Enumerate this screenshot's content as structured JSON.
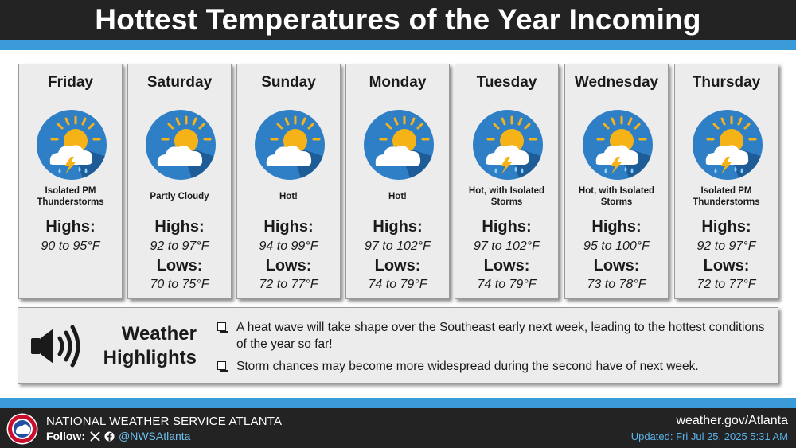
{
  "title": "Hottest Temperatures of the Year Incoming",
  "colors": {
    "title_bar": "#232323",
    "accent_stripe": "#3b9bd9",
    "card_bg": "#ececec",
    "icon_circle": "#2f7fc6",
    "sun": "#f5b318",
    "cloud": "#ffffff"
  },
  "days": [
    {
      "name": "Friday",
      "icon": "sun-cloud-thunderstorm-icon",
      "condition": "Isolated PM Thunderstorms",
      "highs_label": "Highs:",
      "highs": "90 to 95°F",
      "lows_label": "",
      "lows": ""
    },
    {
      "name": "Saturday",
      "icon": "partly-cloudy-icon",
      "condition": "Partly Cloudy",
      "highs_label": "Highs:",
      "highs": "92 to 97°F",
      "lows_label": "Lows:",
      "lows": "70 to 75°F"
    },
    {
      "name": "Sunday",
      "icon": "partly-cloudy-icon",
      "condition": "Hot!",
      "highs_label": "Highs:",
      "highs": "94 to 99°F",
      "lows_label": "Lows:",
      "lows": "72 to 77°F"
    },
    {
      "name": "Monday",
      "icon": "partly-cloudy-icon",
      "condition": "Hot!",
      "highs_label": "Highs:",
      "highs": "97 to 102°F",
      "lows_label": "Lows:",
      "lows": "74 to 79°F"
    },
    {
      "name": "Tuesday",
      "icon": "sun-cloud-thunderstorm-icon",
      "condition": "Hot, with Isolated Storms",
      "highs_label": "Highs:",
      "highs": "97 to 102°F",
      "lows_label": "Lows:",
      "lows": "74 to 79°F"
    },
    {
      "name": "Wednesday",
      "icon": "sun-cloud-thunderstorm-icon",
      "condition": "Hot, with Isolated Storms",
      "highs_label": "Highs:",
      "highs": "95 to 100°F",
      "lows_label": "Lows:",
      "lows": "73 to 78°F"
    },
    {
      "name": "Thursday",
      "icon": "sun-cloud-thunderstorm-icon",
      "condition": "Isolated PM Thunderstorms",
      "highs_label": "Highs:",
      "highs": "92 to 97°F",
      "lows_label": "Lows:",
      "lows": "72 to 77°F"
    }
  ],
  "highlights": {
    "icon": "speaker-icon",
    "title": "Weather Highlights",
    "items": [
      "A heat wave will take shape over the Southeast early next week, leading to the hottest conditions of the year so far!",
      "Storm chances may become more widespread during the second have of next week."
    ]
  },
  "footer": {
    "logo_icon": "nws-logo-icon",
    "org_name": "NATIONAL WEATHER SERVICE ATLANTA",
    "follow_label": "Follow:",
    "social_icons": [
      "x-icon",
      "facebook-icon"
    ],
    "handle": "@NWSAtlanta",
    "website": "weather.gov/Atlanta",
    "updated": "Updated: Fri Jul 25, 2025 5:31 AM"
  }
}
